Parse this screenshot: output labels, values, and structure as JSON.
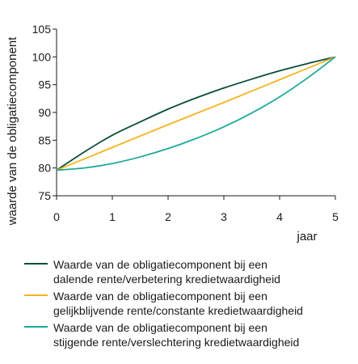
{
  "chart_data": {
    "type": "line",
    "xlabel": "jaar",
    "ylabel": "waarde van de obligatiecomponent",
    "xlim": [
      0,
      5
    ],
    "ylim": [
      75,
      105
    ],
    "xticks": [
      "0",
      "1",
      "2",
      "3",
      "4",
      "5"
    ],
    "yticks": [
      "75",
      "80",
      "85",
      "90",
      "95",
      "100",
      "105"
    ],
    "grid": false,
    "legend_position": "bottom",
    "series": [
      {
        "name": "Waarde van de obligatiecomponent bij een dalende rente/verbetering kredietwaardigheid",
        "name_lines": [
          "Waarde van de obligatiecomponent bij een",
          "dalende rente/verbetering kredietwaardigheid"
        ],
        "color": "#0b4d3c",
        "x": [
          0,
          0.5,
          1,
          1.5,
          2,
          2.5,
          3,
          3.5,
          4,
          4.5,
          5
        ],
        "y": [
          79.6,
          82.9,
          85.9,
          88.3,
          90.6,
          92.6,
          94.4,
          96.0,
          97.5,
          98.8,
          100
        ]
      },
      {
        "name": "Waarde van de obligatiecomponent bij een gelijkblijvende rente/constante kredietwaardigheid",
        "name_lines": [
          "Waarde van de obligatiecomponent bij een",
          "gelijkblijvende rente/constante kredietwaardigheid"
        ],
        "color": "#f5b41e",
        "x": [
          0,
          1,
          2,
          3,
          4,
          5
        ],
        "y": [
          79.6,
          83.7,
          87.8,
          91.8,
          95.9,
          100
        ]
      },
      {
        "name": "Waarde van de obligatiecomponent bij een stijgende rente/verslechtering kredietwaardigheid",
        "name_lines": [
          "Waarde van de obligatiecomponent bij een",
          "stijgende rente/verslechtering kredietwaardigheid"
        ],
        "color": "#1fa99b",
        "x": [
          0,
          0.5,
          1,
          1.5,
          2,
          2.5,
          3,
          3.5,
          4,
          4.5,
          5
        ],
        "y": [
          79.6,
          80.0,
          80.8,
          82.0,
          83.5,
          85.3,
          87.4,
          89.9,
          92.8,
          96.2,
          100
        ]
      }
    ]
  }
}
